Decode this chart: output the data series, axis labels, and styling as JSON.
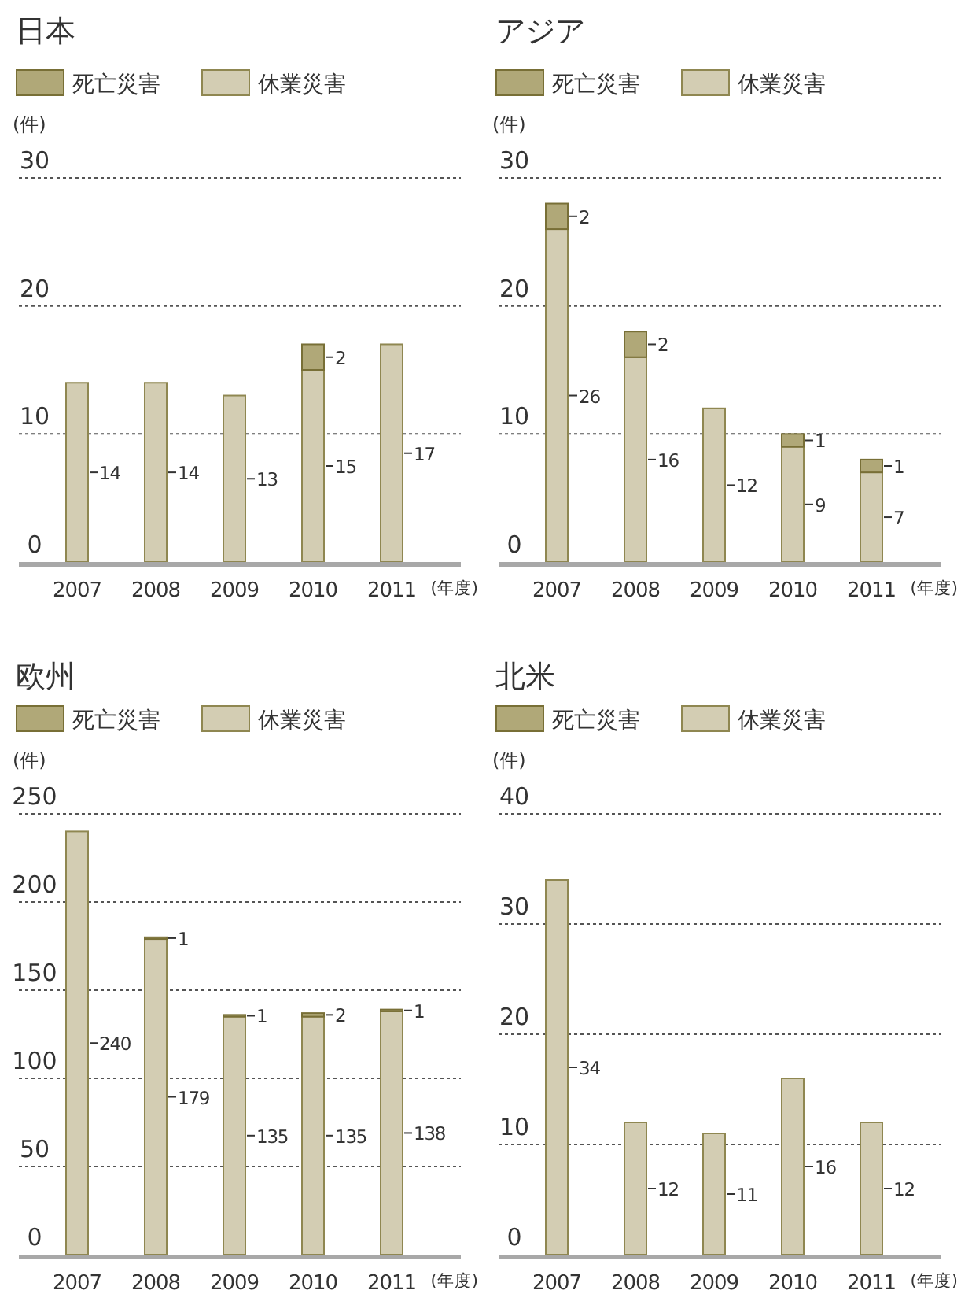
{
  "chart_data": [
    {
      "type": "bar",
      "title": "日本",
      "stacked": true,
      "legend": "top left",
      "grid": "y",
      "data_labels": true,
      "ylabel": "(件)",
      "xlabel": "(年度)",
      "ylim": [
        0,
        30
      ],
      "yticks": [
        0,
        10,
        20,
        30
      ],
      "categories": [
        "2007",
        "2008",
        "2009",
        "2010",
        "2011"
      ],
      "series": [
        {
          "name": "休業災害",
          "color": "#d3cdb3",
          "values": [
            14,
            14,
            13,
            15,
            17
          ]
        },
        {
          "name": "死亡災害",
          "color": "#b0a878",
          "values": [
            null,
            null,
            null,
            2,
            null
          ]
        }
      ]
    },
    {
      "type": "bar",
      "title": "アジア",
      "stacked": true,
      "legend": "top left",
      "grid": "y",
      "data_labels": true,
      "ylabel": "(件)",
      "xlabel": "(年度)",
      "ylim": [
        0,
        30
      ],
      "yticks": [
        0,
        10,
        20,
        30
      ],
      "categories": [
        "2007",
        "2008",
        "2009",
        "2010",
        "2011"
      ],
      "series": [
        {
          "name": "休業災害",
          "color": "#d3cdb3",
          "values": [
            26,
            16,
            12,
            9,
            7
          ]
        },
        {
          "name": "死亡災害",
          "color": "#b0a878",
          "values": [
            2,
            2,
            null,
            1,
            1
          ]
        }
      ]
    },
    {
      "type": "bar",
      "title": "欧州",
      "stacked": true,
      "legend": "top left",
      "grid": "y",
      "data_labels": true,
      "ylabel": "(件)",
      "xlabel": "(年度)",
      "ylim": [
        0,
        250
      ],
      "yticks": [
        0,
        50,
        100,
        150,
        200,
        250
      ],
      "categories": [
        "2007",
        "2008",
        "2009",
        "2010",
        "2011"
      ],
      "series": [
        {
          "name": "休業災害",
          "color": "#d3cdb3",
          "values": [
            240,
            179,
            135,
            135,
            138
          ]
        },
        {
          "name": "死亡災害",
          "color": "#b0a878",
          "values": [
            null,
            1,
            1,
            2,
            1
          ]
        }
      ]
    },
    {
      "type": "bar",
      "title": "北米",
      "stacked": true,
      "legend": "top left",
      "grid": "y",
      "data_labels": true,
      "ylabel": "(件)",
      "xlabel": "(年度)",
      "ylim": [
        0,
        40
      ],
      "yticks": [
        0,
        10,
        20,
        30,
        40
      ],
      "categories": [
        "2007",
        "2008",
        "2009",
        "2010",
        "2011"
      ],
      "series": [
        {
          "name": "休業災害",
          "color": "#d3cdb3",
          "values": [
            34,
            12,
            11,
            16,
            12
          ]
        },
        {
          "name": "死亡災害",
          "color": "#b0a878",
          "values": [
            null,
            null,
            null,
            null,
            null
          ]
        }
      ]
    }
  ]
}
